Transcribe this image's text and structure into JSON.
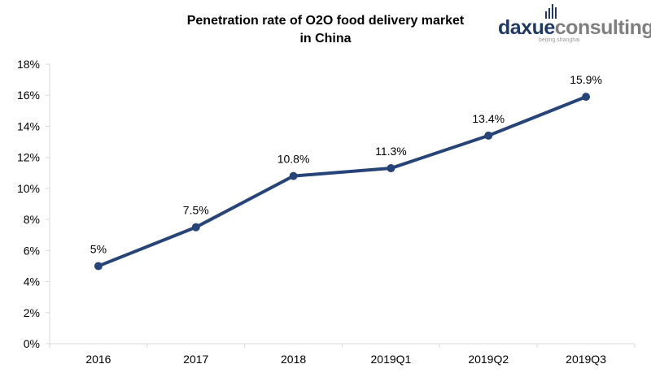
{
  "chart_data": {
    "type": "line",
    "title": "Penetration rate of O2O food delivery market in China",
    "title_lines": [
      "Penetration rate of O2O food delivery market",
      "in China"
    ],
    "categories": [
      "2016",
      "2017",
      "2018",
      "2019Q1",
      "2019Q2",
      "2019Q3"
    ],
    "values": [
      5,
      7.5,
      10.8,
      11.3,
      13.4,
      15.9
    ],
    "data_labels": [
      "5%",
      "7.5%",
      "10.8%",
      "11.3%",
      "13.4%",
      "15.9%"
    ],
    "xlabel": "",
    "ylabel": "",
    "ylim": [
      0,
      18
    ],
    "y_ticks": [
      "0%",
      "2%",
      "4%",
      "6%",
      "8%",
      "10%",
      "12%",
      "14%",
      "16%",
      "18%"
    ],
    "grid": false,
    "legend": "none",
    "series_color": "#264478"
  },
  "logo": {
    "word_dark": "daxue",
    "word_light": "consulting",
    "subtitle": "beijing shanghai",
    "color_dark": "#1f3864",
    "color_light": "#7f7f7f"
  }
}
